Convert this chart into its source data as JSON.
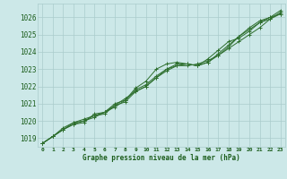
{
  "background_color": "#cce8e8",
  "grid_color": "#aacccc",
  "line_color": "#2d6e2d",
  "marker_color": "#2d6e2d",
  "text_color": "#1a5c1a",
  "xlabel": "Graphe pression niveau de la mer (hPa)",
  "ylim": [
    1018.5,
    1026.8
  ],
  "xlim": [
    -0.5,
    23.5
  ],
  "yticks": [
    1019,
    1020,
    1021,
    1022,
    1023,
    1024,
    1025,
    1026
  ],
  "xticks": [
    0,
    1,
    2,
    3,
    4,
    5,
    6,
    7,
    8,
    9,
    10,
    11,
    12,
    13,
    14,
    15,
    16,
    17,
    18,
    19,
    20,
    21,
    22,
    23
  ],
  "series": [
    [
      1018.7,
      1019.1,
      1019.5,
      1019.8,
      1019.9,
      1020.4,
      1020.5,
      1020.8,
      1021.2,
      1021.9,
      1022.3,
      1023.0,
      1023.3,
      1023.4,
      1023.3,
      1023.2,
      1023.6,
      1024.1,
      1024.6,
      1024.8,
      1025.2,
      1025.7,
      1025.9,
      1026.3
    ],
    [
      1018.7,
      1019.1,
      1019.5,
      1019.8,
      1020.0,
      1020.3,
      1020.4,
      1020.9,
      1021.3,
      1021.7,
      1022.0,
      1022.5,
      1023.0,
      1023.2,
      1023.3,
      1023.2,
      1023.4,
      1023.8,
      1024.2,
      1024.6,
      1025.0,
      1025.4,
      1025.9,
      1026.2
    ],
    [
      1018.7,
      1019.1,
      1019.5,
      1019.9,
      1020.0,
      1020.2,
      1020.5,
      1020.9,
      1021.1,
      1021.7,
      1022.0,
      1022.5,
      1022.9,
      1023.2,
      1023.2,
      1023.3,
      1023.5,
      1023.8,
      1024.3,
      1024.9,
      1025.4,
      1025.8,
      1026.0,
      1026.4
    ],
    [
      1018.7,
      1019.1,
      1019.6,
      1019.9,
      1020.1,
      1020.3,
      1020.5,
      1021.0,
      1021.2,
      1021.8,
      1022.1,
      1022.6,
      1023.0,
      1023.3,
      1023.3,
      1023.2,
      1023.4,
      1023.9,
      1024.4,
      1024.9,
      1025.3,
      1025.7,
      1026.0,
      1026.2
    ]
  ]
}
